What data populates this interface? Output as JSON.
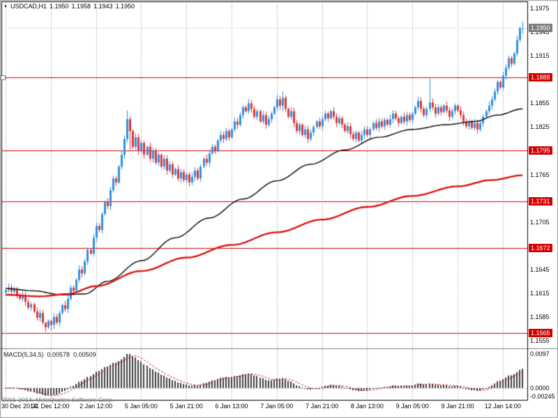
{
  "window": {
    "symbol": "USDCAD,H1",
    "ohlc": {
      "open": "1.1950",
      "high": "1.1958",
      "low": "1.1943",
      "close": "1.1950"
    }
  },
  "macd_panel": {
    "label": "MACD(5,34,5)",
    "value_main": "0.00578",
    "value_signal": "0.00509",
    "axis_labels": [
      "0.0097",
      "0.0000",
      "-0.00245"
    ]
  },
  "footer": {
    "copyright": "2001-2014, MetaQuotes Software Corp."
  },
  "colors": {
    "bull": "#2e8fdf",
    "bear": "#e23535",
    "ma_fast": "#000000",
    "ma_slow": "#dd1111",
    "level_line": "#d40000",
    "level_box": "#d40000",
    "current_box": "#7d7d7d",
    "grid": "#8c8c8c",
    "histogram": "#3f3f3f",
    "signal_line": "#cc2222",
    "border": "#000000",
    "frame": "#9a9a9a"
  },
  "chart_data": {
    "type": "candlestick",
    "title": "USDCAD,H1",
    "symbol": "USDCAD",
    "timeframe": "H1",
    "x_labels": [
      "30 Dec 2014",
      "31 Dec 12:00",
      "2 Jan 12:00",
      "5 Jan 05:00",
      "5 Jan 21:00",
      "6 Jan 13:00",
      "7 Jan 05:00",
      "7 Jan 21:00",
      "8 Jan 13:00",
      "9 Jan 05:00",
      "9 Jan 21:00",
      "12 Jan 14:00"
    ],
    "bars_per_label": 16,
    "ylim": [
      1.1548,
      1.1982
    ],
    "y_ticks": [
      1.1975,
      1.1945,
      1.1915,
      1.1885,
      1.1855,
      1.1825,
      1.1795,
      1.1765,
      1.1735,
      1.1705,
      1.1675,
      1.1645,
      1.1615,
      1.1585,
      1.1555
    ],
    "horizontal_levels": [
      1.1888,
      1.1795,
      1.1731,
      1.1672,
      1.1565
    ],
    "current_price": 1.195,
    "last_bar_ohlc": {
      "open": 1.195,
      "high": 1.1958,
      "low": 1.1943,
      "close": 1.195
    },
    "closes": [
      1.1619,
      1.1622,
      1.1617,
      1.162,
      1.1613,
      1.1608,
      1.1612,
      1.1604,
      1.1597,
      1.1601,
      1.1592,
      1.1584,
      1.159,
      1.1578,
      1.1572,
      1.158,
      1.1575,
      1.1585,
      1.1578,
      1.159,
      1.16,
      1.1595,
      1.1608,
      1.1622,
      1.1618,
      1.1632,
      1.1645,
      1.164,
      1.1655,
      1.167,
      1.1665,
      1.1685,
      1.17,
      1.1695,
      1.1715,
      1.173,
      1.1725,
      1.1745,
      1.176,
      1.1755,
      1.1775,
      1.179,
      1.181,
      1.1835,
      1.182,
      1.18,
      1.1812,
      1.1795,
      1.1805,
      1.179,
      1.18,
      1.1785,
      1.1795,
      1.178,
      1.179,
      1.1775,
      1.1785,
      1.177,
      1.1778,
      1.1765,
      1.1772,
      1.176,
      1.1768,
      1.1758,
      1.1765,
      1.1755,
      1.1762,
      1.177,
      1.176,
      1.1775,
      1.1785,
      1.178,
      1.1792,
      1.18,
      1.1795,
      1.1808,
      1.1815,
      1.181,
      1.182,
      1.1812,
      1.1822,
      1.1832,
      1.1828,
      1.184,
      1.185,
      1.1845,
      1.1855,
      1.1848,
      1.1838,
      1.1845,
      1.1832,
      1.184,
      1.1828,
      1.1835,
      1.1842,
      1.185,
      1.186,
      1.1852,
      1.1862,
      1.1848,
      1.1838,
      1.1845,
      1.183,
      1.182,
      1.1828,
      1.1815,
      1.1822,
      1.181,
      1.1818,
      1.1825,
      1.1832,
      1.1826,
      1.1835,
      1.1842,
      1.1836,
      1.1845,
      1.1838,
      1.183,
      1.1836,
      1.1828,
      1.182,
      1.1826,
      1.1816,
      1.181,
      1.1818,
      1.1808,
      1.1815,
      1.1822,
      1.1815,
      1.1822,
      1.183,
      1.1824,
      1.1832,
      1.1826,
      1.1834,
      1.1828,
      1.1835,
      1.1842,
      1.1836,
      1.183,
      1.1838,
      1.1832,
      1.184,
      1.1834,
      1.1842,
      1.185,
      1.1858,
      1.1848,
      1.184,
      1.1848,
      1.1856,
      1.185,
      1.1842,
      1.185,
      1.1844,
      1.1852,
      1.1846,
      1.1838,
      1.1845,
      1.1852,
      1.1846,
      1.184,
      1.1832,
      1.1826,
      1.1832,
      1.1824,
      1.183,
      1.1822,
      1.183,
      1.1838,
      1.1845,
      1.1852,
      1.186,
      1.187,
      1.1882,
      1.1875,
      1.189,
      1.19,
      1.1912,
      1.1905,
      1.1918,
      1.1935,
      1.195,
      1.195
    ],
    "wick_overrides": {
      "14": [
        1.1578,
        1.1566
      ],
      "16": [
        1.1582,
        1.1568
      ],
      "43": [
        1.1846,
        1.1806
      ],
      "44": [
        1.1838,
        1.1796
      ],
      "65": [
        1.1768,
        1.175
      ],
      "96": [
        1.1866,
        1.1846
      ],
      "98": [
        1.187,
        1.1845
      ],
      "150": [
        1.1886,
        1.1844
      ],
      "182": [
        1.1952,
        1.1932
      ],
      "183": [
        1.1958,
        1.1943
      ]
    },
    "ma_fast_anchors": [
      [
        0,
        1.1621
      ],
      [
        10,
        1.1618
      ],
      [
        20,
        1.1613
      ],
      [
        28,
        1.1614
      ],
      [
        36,
        1.163
      ],
      [
        48,
        1.1656
      ],
      [
        60,
        1.1685
      ],
      [
        72,
        1.171
      ],
      [
        84,
        1.1734
      ],
      [
        96,
        1.1757
      ],
      [
        108,
        1.1778
      ],
      [
        120,
        1.1796
      ],
      [
        132,
        1.1812
      ],
      [
        144,
        1.1822
      ],
      [
        156,
        1.1828
      ],
      [
        166,
        1.1832
      ],
      [
        174,
        1.184
      ],
      [
        183,
        1.1848
      ]
    ],
    "ma_slow_anchors": [
      [
        0,
        1.1613
      ],
      [
        12,
        1.1611
      ],
      [
        22,
        1.1614
      ],
      [
        32,
        1.1624
      ],
      [
        48,
        1.1643
      ],
      [
        64,
        1.166
      ],
      [
        80,
        1.1676
      ],
      [
        96,
        1.1692
      ],
      [
        112,
        1.1708
      ],
      [
        128,
        1.1724
      ],
      [
        144,
        1.1738
      ],
      [
        160,
        1.175
      ],
      [
        172,
        1.1758
      ],
      [
        183,
        1.1764
      ]
    ],
    "macd": {
      "params": [
        5,
        34,
        5
      ],
      "main": 0.00578,
      "signal": 0.00509,
      "ylim": [
        -0.00245,
        0.0097
      ]
    }
  }
}
